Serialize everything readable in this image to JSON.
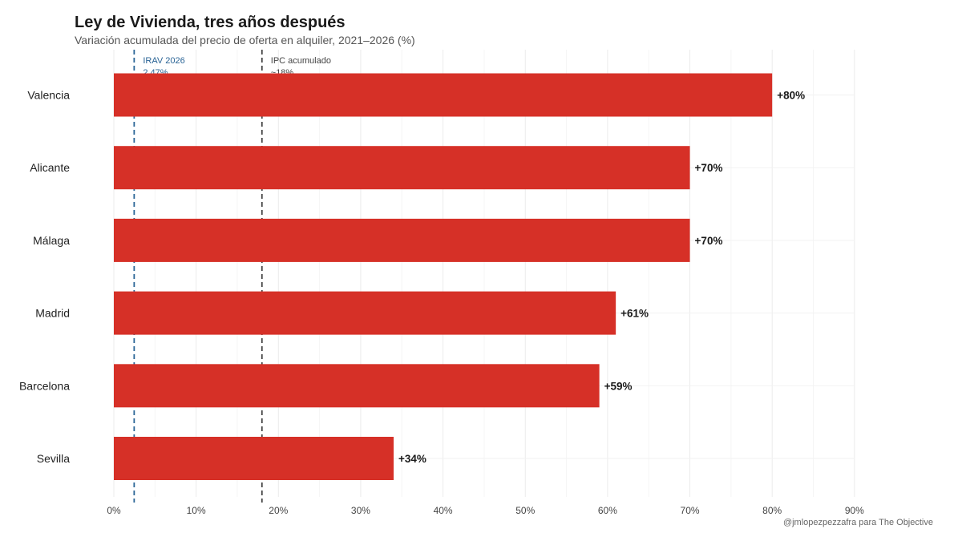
{
  "chart_data": {
    "type": "bar",
    "orientation": "horizontal",
    "title": "Ley de Vivienda, tres años después",
    "subtitle": "Variación acumulada del precio de oferta en alquiler, 2021–2026 (%)",
    "caption": "@jmlopezpezzafra para The Objective",
    "categories": [
      "Valencia",
      "Alicante",
      "Málaga",
      "Madrid",
      "Barcelona",
      "Sevilla"
    ],
    "values": [
      80,
      70,
      70,
      61,
      59,
      34
    ],
    "value_labels": [
      "+80%",
      "+70%",
      "+70%",
      "+61%",
      "+59%",
      "+34%"
    ],
    "bar_color": "#d63027",
    "xlim": [
      0,
      90
    ],
    "x_ticks": [
      0,
      10,
      20,
      30,
      40,
      50,
      60,
      70,
      80,
      90
    ],
    "x_tick_labels": [
      "0%",
      "10%",
      "20%",
      "30%",
      "40%",
      "50%",
      "60%",
      "70%",
      "80%",
      "90%"
    ],
    "grid": true,
    "reference_lines": [
      {
        "value": 2.47,
        "label_line1": "IRAV 2026",
        "label_line2": "2,47%",
        "color": "#2a6496",
        "style": "dashed"
      },
      {
        "value": 18,
        "label_line1": "IPC acumulado",
        "label_line2": "~18%",
        "color": "#444444",
        "style": "dashed"
      }
    ]
  }
}
